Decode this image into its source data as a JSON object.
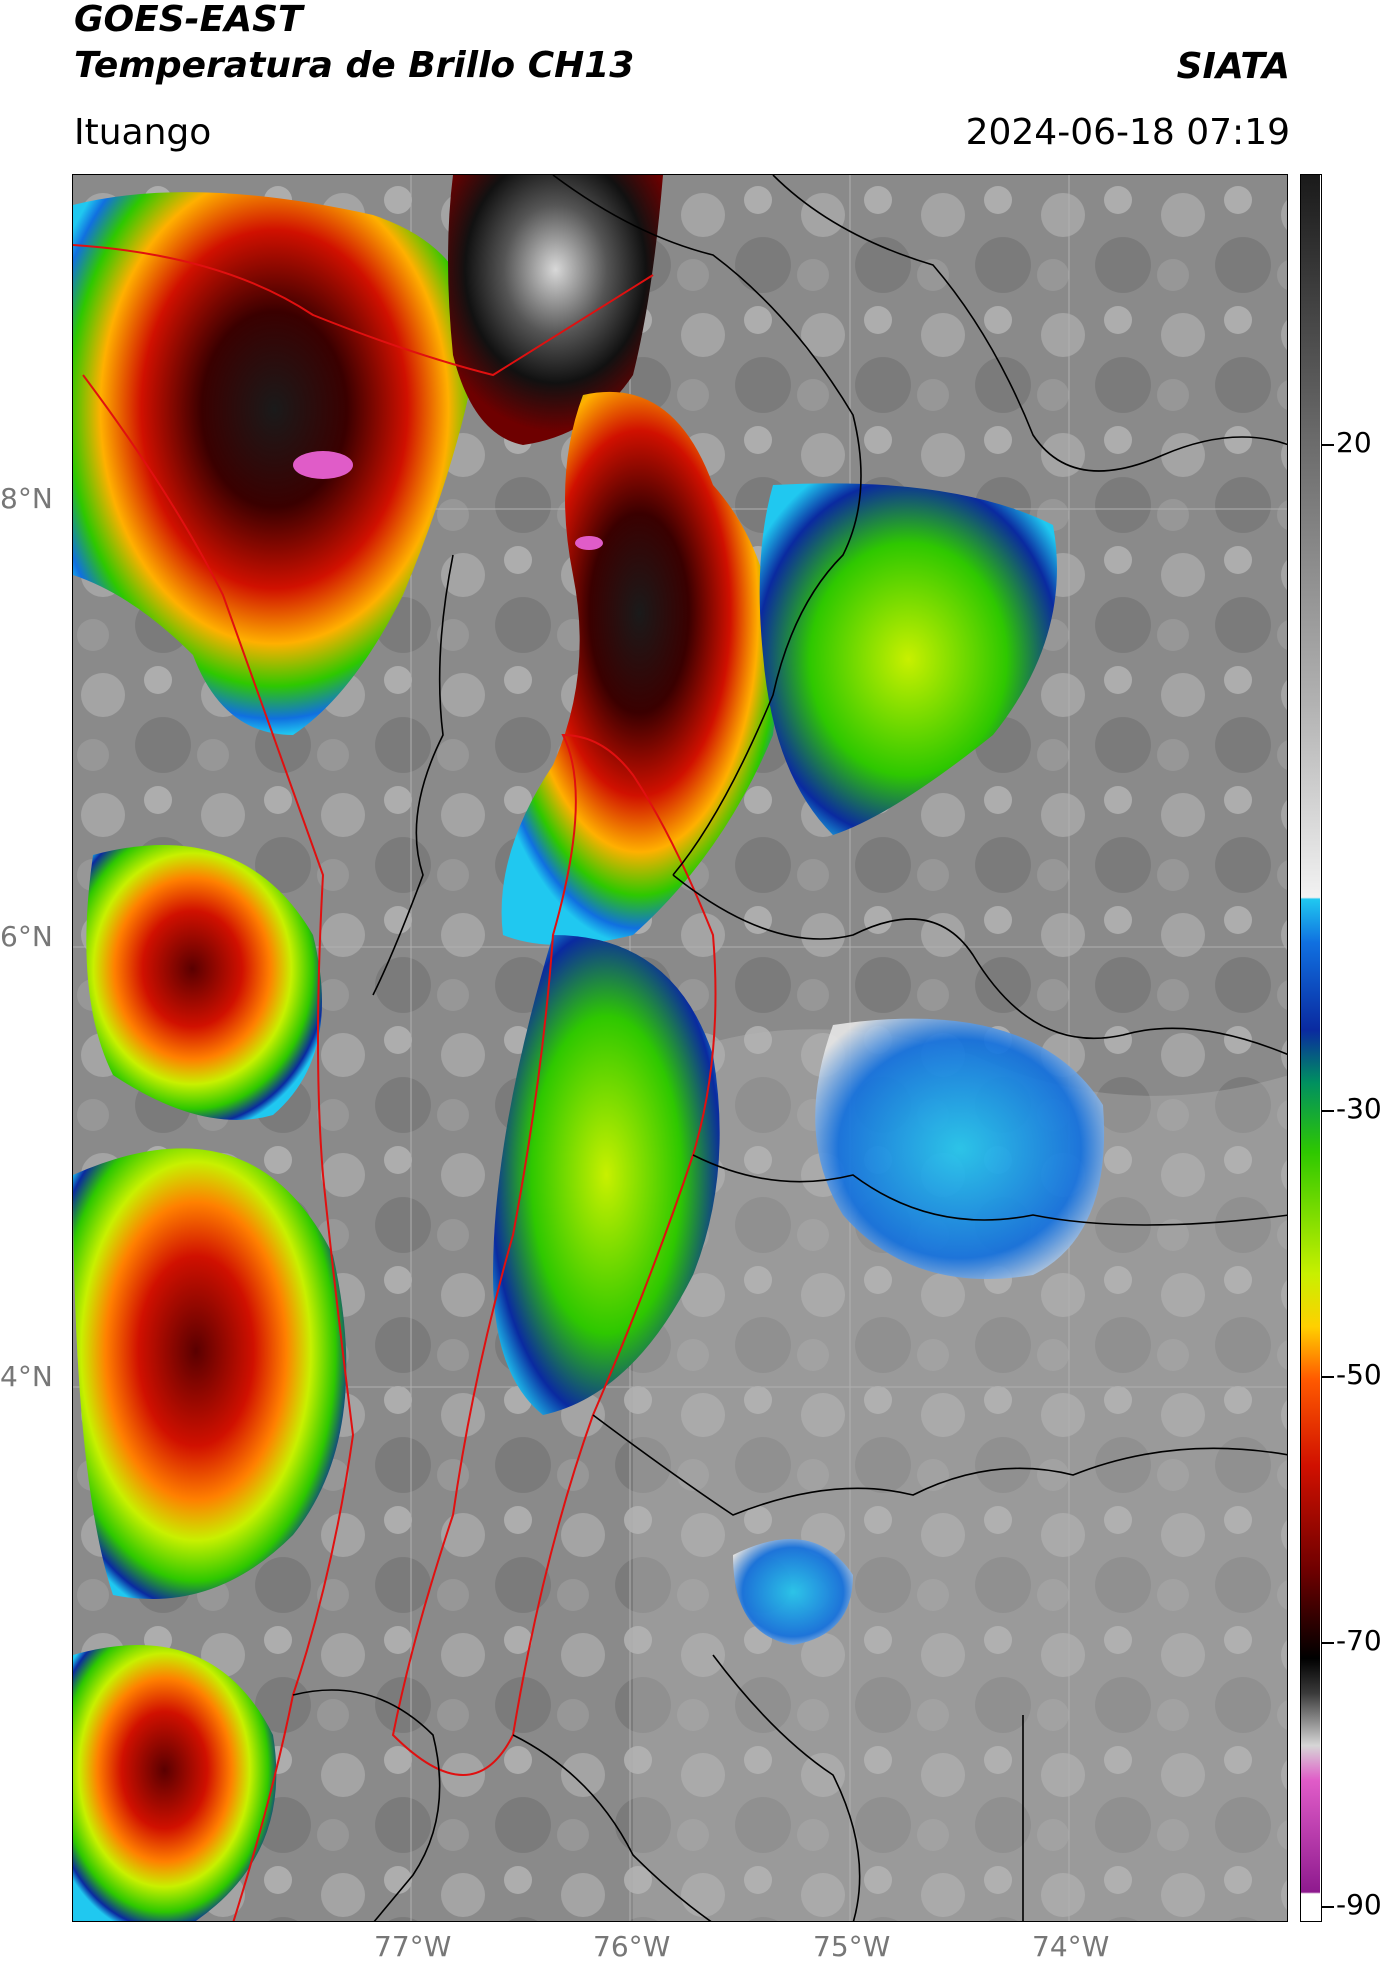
{
  "header": {
    "title_line1": "GOES-EAST",
    "title_line2": "Temperatura de Brillo CH13",
    "brand": "SIATA",
    "location": "Ituango",
    "timestamp": "2024-06-18 07:19"
  },
  "map": {
    "lat_labels": [
      "8°N",
      "6°N",
      "4°N"
    ],
    "lon_labels": [
      "77°W",
      "76°W",
      "75°W",
      "74°W"
    ],
    "colors": {
      "background": "#8a8a8a",
      "borders": "#000000",
      "department_border": "#e01010",
      "grid": "#b0b0b0"
    }
  },
  "colorbar": {
    "ticks": [
      "20",
      "-30",
      "-50",
      "-70",
      "-90"
    ],
    "units_hint": "",
    "colors": [
      "#ffffff",
      "#8e1a8e",
      "#e05cc8",
      "#d6d6d6",
      "#3a3a3a",
      "#000000",
      "#6e0000",
      "#d01000",
      "#ff5a00",
      "#ffd000",
      "#c8f000",
      "#2ec800",
      "#009060",
      "#0a2aa0",
      "#1070e0",
      "#20c8f0",
      "#f2f2f2",
      "#909090",
      "#1a1a1a"
    ]
  }
}
